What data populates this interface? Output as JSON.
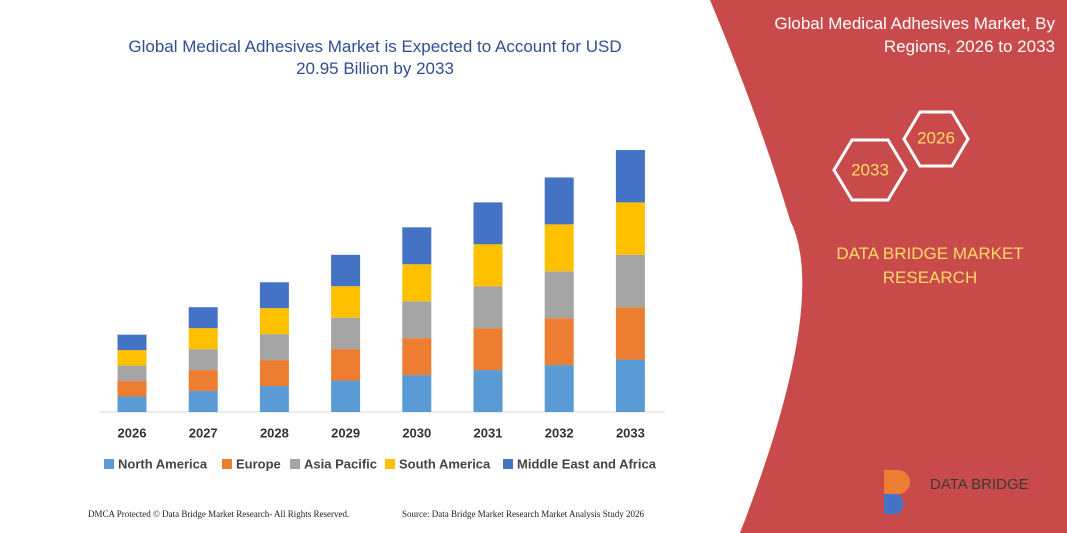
{
  "chart_data": {
    "type": "stacked-bar",
    "title": "Global Medical Adhesives Market is Expected to Account for USD 20.95 Billion by 2033",
    "categories": [
      "2026",
      "2027",
      "2028",
      "2029",
      "2030",
      "2031",
      "2032",
      "2033"
    ],
    "series": [
      {
        "name": "North America",
        "color": "#5b9bd5",
        "values": [
          15.5,
          21,
          26,
          31.5,
          37,
          42,
          47,
          52.5
        ]
      },
      {
        "name": "Europe",
        "color": "#ed7d31",
        "values": [
          15.5,
          21,
          26,
          31.5,
          37,
          42,
          47,
          52.5
        ]
      },
      {
        "name": "Asia Pacific",
        "color": "#a5a5a5",
        "values": [
          15.5,
          21,
          26,
          31.5,
          37,
          42,
          47,
          52.5
        ]
      },
      {
        "name": "South America",
        "color": "#ffc000",
        "values": [
          15.5,
          21,
          26,
          31.5,
          37,
          42,
          47,
          52.5
        ]
      },
      {
        "name": "Middle East and Africa",
        "color": "#4472c4",
        "values": [
          15.5,
          21,
          26,
          31.5,
          37,
          42,
          47,
          52.5
        ]
      }
    ]
  },
  "panel": {
    "title": "Global Medical Adhesives Market, By Regions, 2026 to 2033",
    "start_year": "2026",
    "end_year": "2033",
    "brand": "DATA BRIDGE MARKET RESEARCH",
    "logo": "DATA BRIDGE"
  },
  "footer": {
    "left": "DMCA Protected © Data Bridge Market Research- All Rights Reserved.",
    "right": "Source: Data Bridge Market Research Market Analysis Study 2026"
  }
}
